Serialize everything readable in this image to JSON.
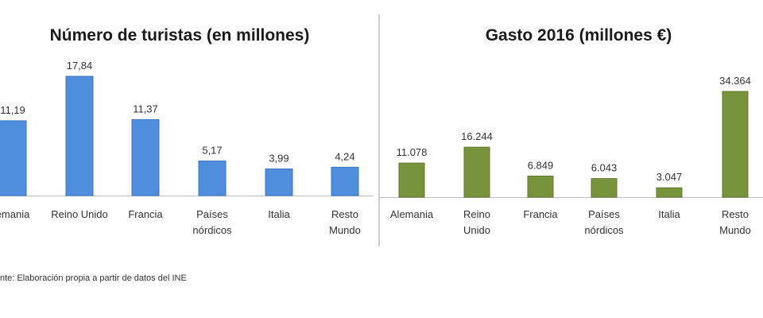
{
  "colors": {
    "tourists_bar": "#4f8edc",
    "tourists_bar_stroke": "#3c76bf",
    "spending_bar": "#77933c",
    "spending_bar_stroke": "#617a2e",
    "divider": "#9e9e9e",
    "axis": "#bfbfbf"
  },
  "source": "nte: Elaboración propia a partir de datos del INE",
  "chart_data": [
    {
      "type": "bar",
      "title": "Número de turistas (en millones)",
      "categories": [
        [
          "emania"
        ],
        [
          "Reino Unido"
        ],
        [
          "Francia"
        ],
        [
          "Países",
          "nórdicos"
        ],
        [
          "Italia"
        ],
        [
          "Resto",
          "Mundo"
        ]
      ],
      "values": [
        11.19,
        17.84,
        11.37,
        5.17,
        3.99,
        4.24
      ],
      "value_labels": [
        "11,19",
        "17,84",
        "11,37",
        "5,17",
        "3,99",
        "4,24"
      ],
      "ylim": [
        0,
        17.84
      ],
      "grid": false
    },
    {
      "type": "bar",
      "title": "Gasto 2016 (millones €)",
      "categories": [
        [
          "Alemania"
        ],
        [
          "Reino",
          "Unido"
        ],
        [
          "Francia"
        ],
        [
          "Países",
          "nórdicos"
        ],
        [
          "Italia"
        ],
        [
          "Resto",
          "Mundo"
        ]
      ],
      "values": [
        11078,
        16244,
        6849,
        6043,
        3047,
        34364
      ],
      "value_labels": [
        "11.078",
        "16.244",
        "6.849",
        "6.043",
        "3.047",
        "34.364"
      ],
      "ylim": [
        0,
        34364
      ],
      "grid": false
    }
  ]
}
